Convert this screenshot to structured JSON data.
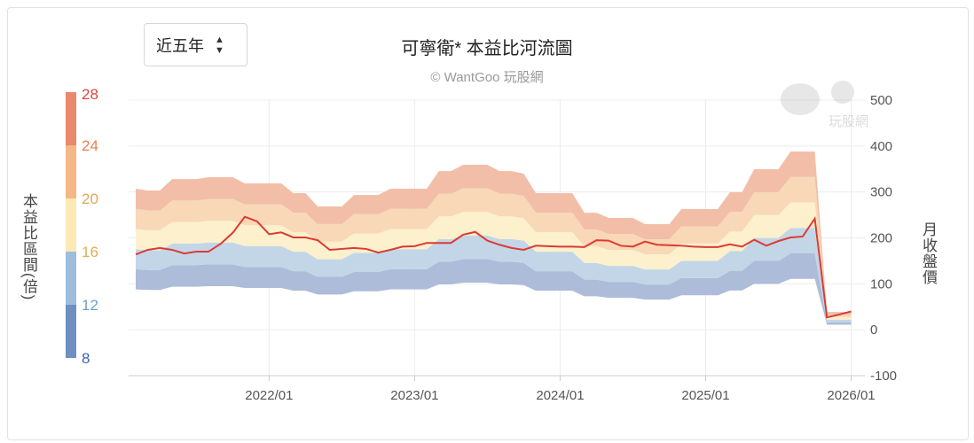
{
  "range_select": {
    "value": "近五年"
  },
  "chart_data": {
    "type": "area",
    "title": "可寧衛* 本益比河流圖",
    "subtitle": "© WantGoo 玩股網",
    "watermark": "玩股網",
    "left_label": "本益比區間(倍)",
    "right_label": "月收盤價",
    "x_ticks": [
      "2022/01",
      "2023/01",
      "2024/01",
      "2025/01",
      "2026/01"
    ],
    "y_ticks": [
      500,
      400,
      300,
      200,
      100,
      0,
      -100
    ],
    "ylim": [
      -100,
      500
    ],
    "x_range": [
      "2021/02",
      "2026/01"
    ],
    "grid": true,
    "pe_multiples": [
      8,
      12,
      16,
      20,
      24,
      28
    ],
    "legend_labels": [
      "28",
      "24",
      "20",
      "16",
      "12",
      "8"
    ],
    "band_colors": [
      "#a9b8d6",
      "#c0d4e6",
      "#fcefca",
      "#f8d6b3",
      "#f1baa3"
    ],
    "legend_colors": [
      "#6f8fc0",
      "#9ebddc",
      "#fce9b5",
      "#f3b886",
      "#e8886c"
    ],
    "legend_label_colors": [
      "#d9473a",
      "#e8804f",
      "#e4a65b",
      "#e2ad55",
      "#6d9fd0",
      "#3f65a8"
    ],
    "line_color": "#dc3b33",
    "eps": [
      10.97,
      10.83,
      10.83,
      11.72,
      11.72,
      11.72,
      11.86,
      11.86,
      11.86,
      11.38,
      11.38,
      11.38,
      11.38,
      10.62,
      10.62,
      9.59,
      9.59,
      9.59,
      10.48,
      10.48,
      10.48,
      10.97,
      10.97,
      10.97,
      10.97,
      12.34,
      12.34,
      12.83,
      12.83,
      12.83,
      12.34,
      12.34,
      12.14,
      10.62,
      10.62,
      10.62,
      10.62,
      9.1,
      9.1,
      8.69,
      8.69,
      8.69,
      8.21,
      8.21,
      8.21,
      9.38,
      9.38,
      9.38,
      9.38,
      10.69,
      10.69,
      12.48,
      12.48,
      12.48,
      13.86,
      13.86,
      13.86,
      1.38,
      1.38,
      1.38
    ],
    "price": [
      164,
      174,
      178,
      174,
      166,
      170,
      170,
      187,
      211,
      246,
      236,
      208,
      212,
      201,
      201,
      195,
      174,
      176,
      178,
      176,
      168,
      174,
      181,
      182,
      189,
      189,
      189,
      207,
      213,
      194,
      185,
      178,
      174,
      183,
      182,
      181,
      181,
      180,
      195,
      194,
      183,
      181,
      192,
      185,
      184,
      183,
      181,
      180,
      180,
      186,
      181,
      196,
      183,
      193,
      201,
      203,
      242,
      27,
      33,
      40
    ]
  }
}
